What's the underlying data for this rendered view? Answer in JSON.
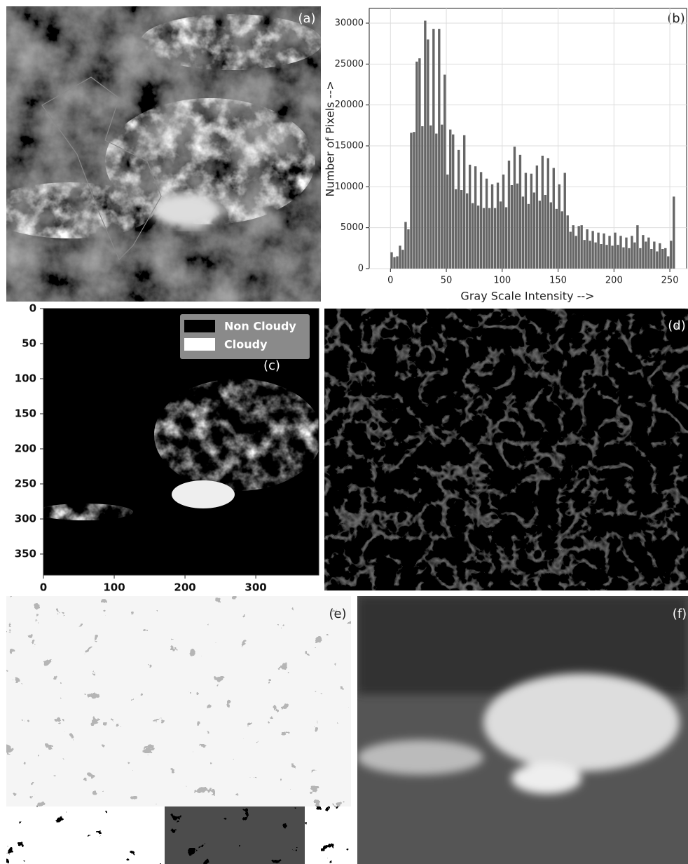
{
  "panels": [
    {
      "label": "(a)"
    },
    {
      "label": "(b)"
    },
    {
      "label": "(c)"
    },
    {
      "label": "(d)"
    },
    {
      "label": "(e)"
    },
    {
      "label": "(f)"
    }
  ],
  "chart_data": [
    {
      "type": "histogram",
      "xlabel": "Gray Scale Intensity -->",
      "ylabel": "Number of Pixels -->",
      "color": "#666666",
      "grid": true,
      "bins": [
        0,
        2.5,
        5,
        7.5,
        10,
        12.5,
        15,
        17.5,
        20,
        22.5,
        25,
        27.5,
        30,
        32.5,
        35,
        37.5,
        40,
        42.5,
        45,
        47.5,
        50,
        52.5,
        55,
        57.5,
        60,
        62.5,
        65,
        67.5,
        70,
        72.5,
        75,
        77.5,
        80,
        82.5,
        85,
        87.5,
        90,
        92.5,
        95,
        97.5,
        100,
        102.5,
        105,
        107.5,
        110,
        112.5,
        115,
        117.5,
        120,
        122.5,
        125,
        127.5,
        130,
        132.5,
        135,
        137.5,
        140,
        142.5,
        145,
        147.5,
        150,
        152.5,
        155,
        157.5,
        160,
        162.5,
        165,
        167.5,
        170,
        172.5,
        175,
        177.5,
        180,
        182.5,
        185,
        187.5,
        190,
        192.5,
        195,
        197.5,
        200,
        202.5,
        205,
        207.5,
        210,
        212.5,
        215,
        217.5,
        220,
        222.5,
        225,
        227.5,
        230,
        232.5,
        235,
        237.5,
        240,
        242.5,
        245,
        247.5,
        250,
        252.5,
        255
      ],
      "values": [
        2000,
        1400,
        1500,
        2800,
        2300,
        5700,
        4800,
        16600,
        16700,
        25300,
        25700,
        17400,
        30300,
        28000,
        17500,
        29300,
        16500,
        29300,
        17600,
        23700,
        11500,
        17000,
        16400,
        9700,
        14500,
        9600,
        16300,
        9200,
        12700,
        8000,
        12500,
        7700,
        11800,
        7400,
        11000,
        7400,
        10300,
        7400,
        10500,
        8200,
        11500,
        7500,
        13200,
        10200,
        14900,
        10400,
        13900,
        8800,
        11700,
        7900,
        11600,
        9300,
        12600,
        8300,
        13800,
        9000,
        13500,
        8100,
        12300,
        7300,
        10300,
        7000,
        11700,
        6500,
        4500,
        5300,
        4000,
        5200,
        5300,
        3500,
        4800,
        3400,
        4600,
        3200,
        4400,
        3000,
        4300,
        2900,
        4000,
        2800,
        4400,
        2900,
        4000,
        2600,
        3800,
        2500,
        4000,
        3200,
        5300,
        2500,
        4100,
        3300,
        3800,
        2400,
        3300,
        2100,
        3100,
        2400,
        2500,
        1500,
        3400,
        8800
      ],
      "xlim": [
        -19,
        265
      ],
      "ylim": [
        0,
        31800
      ],
      "xticks": [
        0,
        50,
        100,
        150,
        200,
        250
      ],
      "yticks": [
        0,
        5000,
        10000,
        15000,
        20000,
        25000,
        30000
      ]
    },
    {
      "type": "image",
      "legend": "upper right",
      "series": [
        {
          "name": "Non Cloudy",
          "color": "#000000"
        },
        {
          "name": "Cloudy",
          "color": "#ffffff"
        }
      ],
      "xlim": [
        0,
        389
      ],
      "ylim": [
        380,
        0
      ],
      "xticks": [
        0,
        100,
        200,
        300
      ],
      "yticks": [
        0,
        50,
        100,
        150,
        200,
        250,
        300,
        350
      ]
    }
  ]
}
